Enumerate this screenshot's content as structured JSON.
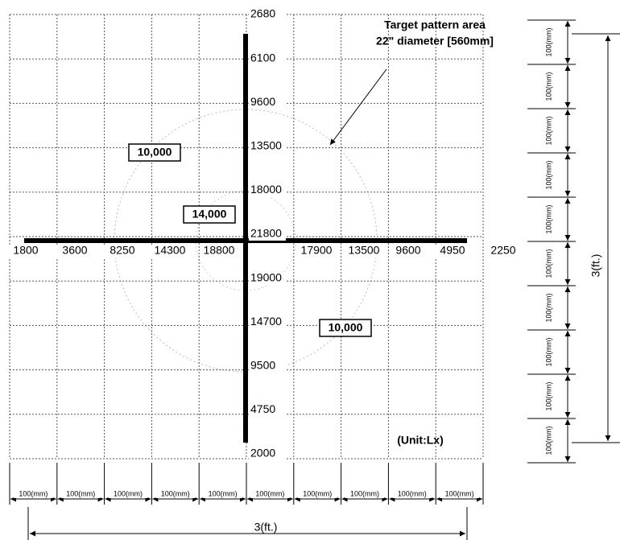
{
  "annotation": {
    "lines": [
      "Target pattern area",
      "22\" diameter [560mm]"
    ]
  },
  "unit_label": "(Unit:Lx)",
  "vertical_axis_labels": [
    "2680",
    "6100",
    "9600",
    "13500",
    "18000",
    "21800",
    "19000",
    "14700",
    "9500",
    "4750",
    "2000"
  ],
  "horizontal_axis_labels": [
    "1800",
    "3600",
    "8250",
    "14300",
    "18800",
    "17900",
    "13500",
    "9600",
    "4950",
    "2250"
  ],
  "boxes": [
    "10,000",
    "14,000",
    "10,000"
  ],
  "right_scale": {
    "segments": [
      "100(mm)",
      "100(mm)",
      "100(mm)",
      "100(mm)",
      "100(mm)",
      "100(mm)",
      "100(mm)",
      "100(mm)",
      "100(mm)",
      "100(mm)"
    ],
    "total": "3(ft.)"
  },
  "bottom_scale": {
    "segments": [
      "100(mm)",
      "100(mm)",
      "100(mm)",
      "100(mm)",
      "100(mm)",
      "100(mm)",
      "100(mm)",
      "100(mm)",
      "100(mm)",
      "100(mm)"
    ],
    "total": "3(ft.)"
  }
}
